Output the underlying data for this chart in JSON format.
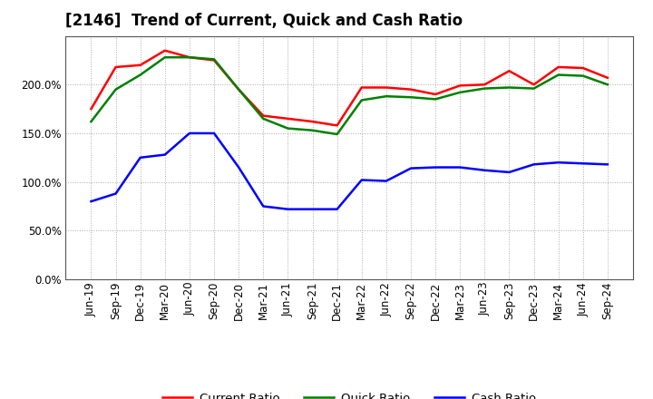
{
  "title": "[2146]  Trend of Current, Quick and Cash Ratio",
  "x_labels": [
    "Jun-19",
    "Sep-19",
    "Dec-19",
    "Mar-20",
    "Jun-20",
    "Sep-20",
    "Dec-20",
    "Mar-21",
    "Jun-21",
    "Sep-21",
    "Dec-21",
    "Mar-22",
    "Jun-22",
    "Sep-22",
    "Dec-22",
    "Mar-23",
    "Jun-23",
    "Sep-23",
    "Dec-23",
    "Mar-24",
    "Jun-24",
    "Sep-24"
  ],
  "current_ratio": [
    175,
    218,
    220,
    235,
    228,
    225,
    195,
    168,
    165,
    162,
    158,
    197,
    197,
    195,
    190,
    199,
    200,
    214,
    200,
    218,
    217,
    207
  ],
  "quick_ratio": [
    162,
    195,
    210,
    228,
    228,
    226,
    195,
    165,
    155,
    153,
    149,
    184,
    188,
    187,
    185,
    192,
    196,
    197,
    196,
    210,
    209,
    200
  ],
  "cash_ratio": [
    80,
    88,
    125,
    128,
    150,
    150,
    115,
    75,
    72,
    72,
    72,
    102,
    101,
    114,
    115,
    115,
    112,
    110,
    118,
    120,
    119,
    118
  ],
  "current_color": "#FF0000",
  "quick_color": "#008000",
  "cash_color": "#0000FF",
  "line_width": 1.8,
  "ylim": [
    0,
    250
  ],
  "yticks": [
    0,
    50,
    100,
    150,
    200
  ],
  "background_color": "#ffffff",
  "plot_bg_color": "#ffffff",
  "grid_color": "#aaaaaa",
  "title_fontsize": 12,
  "legend_fontsize": 9.5,
  "tick_fontsize": 8.5
}
